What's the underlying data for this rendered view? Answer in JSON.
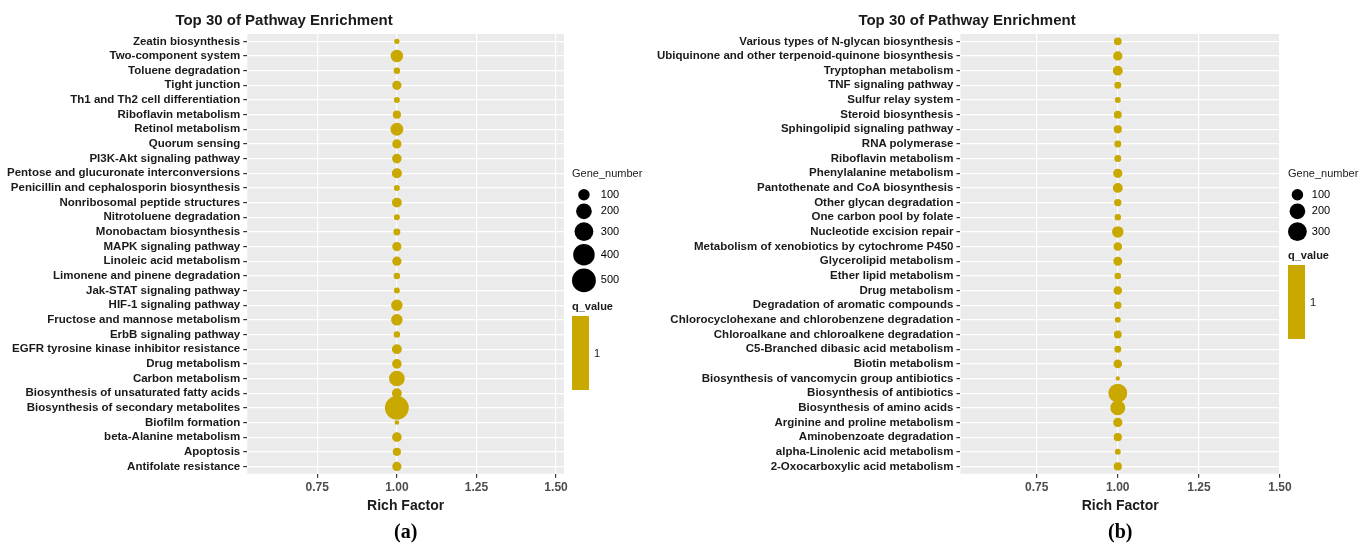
{
  "chart_data": [
    {
      "type": "bubble",
      "orientation": "horizontal",
      "title": "Top 30 of Pathway Enrichment",
      "xlabel": "Rich Factor",
      "legend_title": "Gene_number",
      "clabel": "q_value",
      "grid": true,
      "color": "#c9a800",
      "categories": [
        "Zeatin biosynthesis",
        "Two-component system",
        "Toluene degradation",
        "Tight junction",
        "Th1 and Th2 cell differentiation",
        "Riboflavin metabolism",
        "Retinol metabolism",
        "Quorum sensing",
        "PI3K-Akt signaling pathway",
        "Pentose and glucuronate interconversions",
        "Penicillin and cephalosporin biosynthesis",
        "Nonribosomal peptide structures",
        "Nitrotoluene degradation",
        "Monobactam biosynthesis",
        "MAPK signaling pathway",
        "Linoleic acid metabolism",
        "Limonene and pinene degradation",
        "Jak-STAT signaling pathway",
        "HIF-1 signaling pathway",
        "Fructose and mannose metabolism",
        "ErbB signaling pathway",
        "EGFR tyrosine kinase inhibitor resistance",
        "Drug metabolism",
        "Carbon metabolism",
        "Biosynthesis of unsaturated fatty acids",
        "Biosynthesis of secondary metabolites",
        "Biofilm formation",
        "beta-Alanine metabolism",
        "Apoptosis",
        "Antifolate resistance"
      ],
      "values": [
        1,
        1,
        1,
        1,
        1,
        1,
        1,
        1,
        1,
        1,
        1,
        1,
        1,
        1,
        1,
        1,
        1,
        1,
        1,
        1,
        1,
        1,
        1,
        1,
        1,
        1,
        1,
        1,
        1,
        1
      ],
      "sizes": [
        15,
        120,
        25,
        60,
        20,
        45,
        130,
        60,
        65,
        75,
        20,
        70,
        20,
        30,
        60,
        60,
        25,
        20,
        100,
        100,
        25,
        70,
        65,
        200,
        70,
        500,
        10,
        65,
        45,
        60
      ],
      "size_legend": [
        100,
        200,
        300,
        400,
        500
      ],
      "xlim": [
        0.53,
        1.525
      ],
      "xticks": [
        {
          "value": 0.75,
          "label": "0.75"
        },
        {
          "value": 1,
          "label": "1.00"
        },
        {
          "value": 1.25,
          "label": "1.25"
        },
        {
          "value": 1.5,
          "label": "1.50"
        }
      ],
      "annotations": [
        "(a)",
        "1"
      ]
    },
    {
      "type": "bubble",
      "orientation": "horizontal",
      "title": "Top 30 of Pathway Enrichment",
      "xlabel": "Rich Factor",
      "legend_title": "Gene_number",
      "clabel": "q_value",
      "grid": true,
      "color": "#c9a800",
      "categories": [
        "Various types of N-glycan biosynthesis",
        "Ubiquinone and other terpenoid-quinone biosynthesis",
        "Tryptophan metabolism",
        "TNF signaling pathway",
        "Sulfur relay system",
        "Steroid biosynthesis",
        "Sphingolipid signaling pathway",
        "RNA polymerase",
        "Riboflavin metabolism",
        "Phenylalanine metabolism",
        "Pantothenate and CoA biosynthesis",
        "Other glycan degradation",
        "One carbon pool by folate",
        "Nucleotide excision repair",
        "Metabolism of xenobiotics by cytochrome P450",
        "Glycerolipid metabolism",
        "Ether lipid metabolism",
        "Drug metabolism",
        "Degradation of aromatic compounds",
        "Chlorocyclohexane and chlorobenzene degradation",
        "Chloroalkane and chloroalkene degradation",
        "C5-Branched dibasic acid metabolism",
        "Biotin metabolism",
        "Biosynthesis of vancomycin group antibiotics",
        "Biosynthesis of antibiotics",
        "Biosynthesis of amino acids",
        "Arginine and proline metabolism",
        "Aminobenzoate degradation",
        "alpha-Linolenic acid metabolism",
        "2-Oxocarboxylic acid metabolism"
      ],
      "values": [
        1,
        1,
        1,
        1,
        1,
        1,
        1,
        1,
        1,
        1,
        1,
        1,
        1,
        1,
        1,
        1,
        1,
        1,
        1,
        1,
        1,
        1,
        1,
        1,
        1,
        1,
        1,
        1,
        1,
        1
      ],
      "sizes": [
        40,
        60,
        70,
        30,
        20,
        40,
        45,
        30,
        30,
        60,
        70,
        35,
        25,
        100,
        50,
        55,
        25,
        50,
        35,
        20,
        40,
        30,
        50,
        8,
        300,
        180,
        60,
        45,
        20,
        45
      ],
      "size_legend": [
        100,
        200,
        300
      ],
      "xlim": [
        0.515,
        1.5
      ],
      "xticks": [
        {
          "value": 0.75,
          "label": "0.75"
        },
        {
          "value": 1,
          "label": "1.00"
        },
        {
          "value": 1.25,
          "label": "1.25"
        },
        {
          "value": 1.5,
          "label": "1.50"
        }
      ],
      "annotations": [
        "(b)",
        "1"
      ]
    }
  ]
}
